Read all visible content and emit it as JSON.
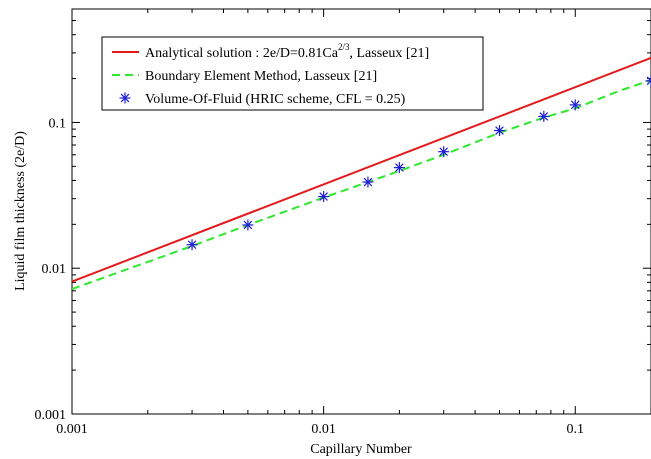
{
  "chart_data": {
    "type": "line",
    "x_scale": "log",
    "y_scale": "log",
    "xlim": [
      0.001,
      0.2
    ],
    "ylim": [
      0.001,
      0.6
    ],
    "xlabel": "Capillary Number",
    "ylabel": "Liquid film thickness (2e/D)",
    "x_ticks": [
      {
        "value": 0.001,
        "label": "0.001"
      },
      {
        "value": 0.01,
        "label": "0.01"
      },
      {
        "value": 0.1,
        "label": "0.1"
      }
    ],
    "y_ticks": [
      {
        "value": 0.001,
        "label": "0.001"
      },
      {
        "value": 0.01,
        "label": "0.01"
      },
      {
        "value": 0.1,
        "label": "0.1"
      }
    ],
    "grid": false,
    "legend_position": "top-left",
    "series": [
      {
        "name": "Analytical solution : 2e/D=0.81Ca^(2/3), Lasseux [21]",
        "legend_main": "Analytical solution : 2e/D=0.81Ca",
        "legend_sup": "2/3",
        "legend_tail": ", Lasseux [21]",
        "kind": "line",
        "style": "solid",
        "color": "#e31a1c",
        "x": [
          0.001,
          0.2
        ],
        "y": [
          0.0081,
          0.277
        ]
      },
      {
        "name": "Boundary Element Method, Lasseux [21]",
        "kind": "line",
        "style": "dashed",
        "color": "#2ee82e",
        "x": [
          0.001,
          0.003,
          0.005,
          0.01,
          0.015,
          0.02,
          0.03,
          0.05,
          0.075,
          0.1,
          0.15,
          0.2
        ],
        "y": [
          0.0072,
          0.0142,
          0.0198,
          0.0305,
          0.039,
          0.0465,
          0.06,
          0.085,
          0.108,
          0.125,
          0.165,
          0.195
        ]
      },
      {
        "name": "Volume-Of-Fluid (HRIC scheme, CFL = 0.25)",
        "kind": "scatter",
        "marker": "asterisk",
        "color": "#1f1fd6",
        "x": [
          0.003,
          0.005,
          0.01,
          0.015,
          0.02,
          0.03,
          0.05,
          0.075,
          0.1,
          0.2
        ],
        "y": [
          0.0145,
          0.0198,
          0.031,
          0.039,
          0.049,
          0.063,
          0.088,
          0.11,
          0.132,
          0.193
        ]
      }
    ]
  }
}
